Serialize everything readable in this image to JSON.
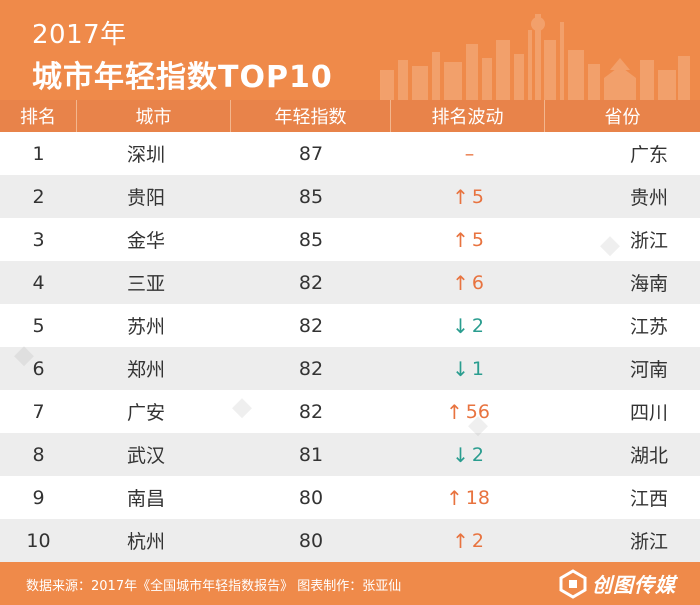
{
  "header": {
    "year": "2017年",
    "title": "城市年轻指数TOP10"
  },
  "columns": [
    "排名",
    "城市",
    "年轻指数",
    "排名波动",
    "省份"
  ],
  "rows": [
    {
      "rank": "1",
      "city": "深圳",
      "score": "87",
      "arrow": "",
      "change": "–",
      "trend": "none",
      "province": "广东"
    },
    {
      "rank": "2",
      "city": "贵阳",
      "score": "85",
      "arrow": "↑",
      "change": "5",
      "trend": "up",
      "province": "贵州"
    },
    {
      "rank": "3",
      "city": "金华",
      "score": "85",
      "arrow": "↑",
      "change": "5",
      "trend": "up",
      "province": "浙江"
    },
    {
      "rank": "4",
      "city": "三亚",
      "score": "82",
      "arrow": "↑",
      "change": "6",
      "trend": "up",
      "province": "海南"
    },
    {
      "rank": "5",
      "city": "苏州",
      "score": "82",
      "arrow": "↓",
      "change": "2",
      "trend": "down",
      "province": "江苏"
    },
    {
      "rank": "6",
      "city": "郑州",
      "score": "82",
      "arrow": "↓",
      "change": "1",
      "trend": "down",
      "province": "河南"
    },
    {
      "rank": "7",
      "city": "广安",
      "score": "82",
      "arrow": "↑",
      "change": "56",
      "trend": "up",
      "province": "四川"
    },
    {
      "rank": "8",
      "city": "武汉",
      "score": "81",
      "arrow": "↓",
      "change": "2",
      "trend": "down",
      "province": "湖北"
    },
    {
      "rank": "9",
      "city": "南昌",
      "score": "80",
      "arrow": "↑",
      "change": "18",
      "trend": "up",
      "province": "江西"
    },
    {
      "rank": "10",
      "city": "杭州",
      "score": "80",
      "arrow": "↑",
      "change": "2",
      "trend": "up",
      "province": "浙江"
    }
  ],
  "colors": {
    "header_bg": "#ef8a4a",
    "col_header_bg": "#e8834a",
    "up": "#e8733f",
    "down": "#2a9d8f",
    "none": "#e8733f",
    "stripe": "#ededed"
  },
  "footer": {
    "source": "数据来源：2017年《全国城市年轻指数报告》 图表制作：张亚仙",
    "logo_text": "创图传媒"
  }
}
